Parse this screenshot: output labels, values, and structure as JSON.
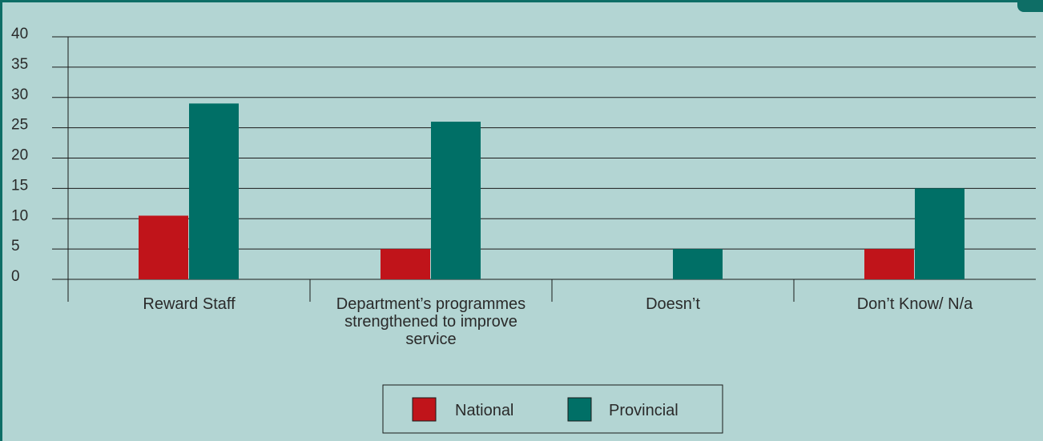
{
  "chart_data": {
    "type": "bar",
    "categories": [
      [
        "Reward Staff"
      ],
      [
        "Department’s programmes",
        "strengthened to improve",
        "service"
      ],
      [
        "Doesn’t"
      ],
      [
        "Don’t Know/ N/a"
      ]
    ],
    "series": [
      {
        "name": "National",
        "color": "#c0141a",
        "values": [
          10.5,
          5,
          0,
          5
        ]
      },
      {
        "name": "Provincial",
        "color": "#006f66",
        "values": [
          29,
          26,
          5,
          15
        ]
      }
    ],
    "ylim": [
      0,
      40
    ],
    "yticks": [
      "0",
      "5",
      "10",
      "15",
      "20",
      "25",
      "30",
      "35",
      "40"
    ],
    "grid": true,
    "legend_position": "bottom-center"
  },
  "colors": {
    "background": "#b3d5d3",
    "frame": "#0e6e66",
    "gridline": "#1a1a1a"
  }
}
